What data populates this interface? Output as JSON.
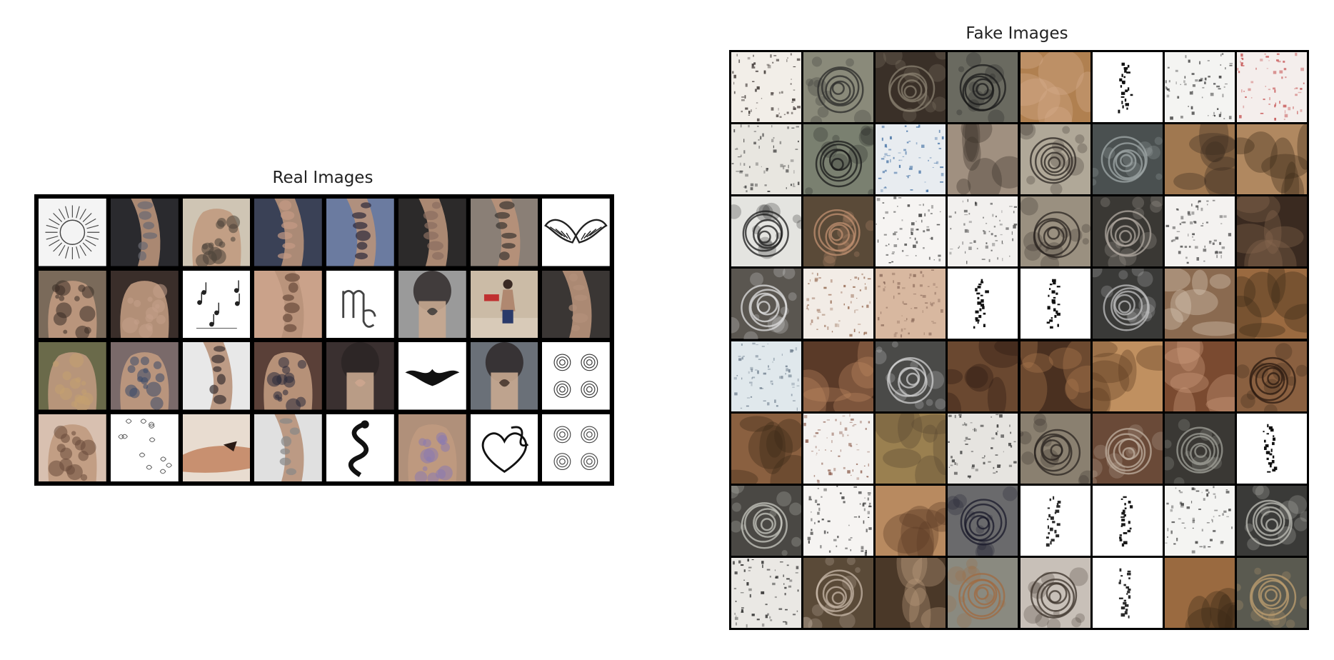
{
  "real_panel": {
    "title": "Real Images",
    "rows": 4,
    "cols": 8,
    "tiles": [
      {
        "bg": "#f4f4f4",
        "ink": "#444444",
        "motif": "sun"
      },
      {
        "bg": "#2a2a2e",
        "ink": "#6a6a72",
        "motif": "arm"
      },
      {
        "bg": "#cfc5b4",
        "ink": "#4a4238",
        "motif": "back"
      },
      {
        "bg": "#3a4156",
        "ink": "#c49a84",
        "motif": "arm"
      },
      {
        "bg": "#6b7ba0",
        "ink": "#2e2a3a",
        "motif": "arm"
      },
      {
        "bg": "#2c2a2a",
        "ink": "#8a6e60",
        "motif": "arm"
      },
      {
        "bg": "#8a7f76",
        "ink": "#3b3530",
        "motif": "arm"
      },
      {
        "bg": "#ffffff",
        "ink": "#222222",
        "motif": "wings"
      },
      {
        "bg": "#7a6a5a",
        "ink": "#3a2e26",
        "motif": "back"
      },
      {
        "bg": "#3a2e2a",
        "ink": "#c4a08a",
        "motif": "back"
      },
      {
        "bg": "#ffffff",
        "ink": "#222222",
        "motif": "notes"
      },
      {
        "bg": "#caa28a",
        "ink": "#6a4a3a",
        "motif": "arm"
      },
      {
        "bg": "#ffffff",
        "ink": "#444444",
        "motif": "glyph"
      },
      {
        "bg": "#9a9a9a",
        "ink": "#333333",
        "motif": "neck"
      },
      {
        "bg": "#cbbba6",
        "ink": "#4a3a30",
        "motif": "figure"
      },
      {
        "bg": "#3a3634",
        "ink": "#b4907a",
        "motif": "arm"
      },
      {
        "bg": "#6a6a4a",
        "ink": "#c4a070",
        "motif": "back"
      },
      {
        "bg": "#7a6a6a",
        "ink": "#3a4a6a",
        "motif": "back"
      },
      {
        "bg": "#e8e8e8",
        "ink": "#3a3030",
        "motif": "arm"
      },
      {
        "bg": "#5a4038",
        "ink": "#2a2a3a",
        "motif": "back"
      },
      {
        "bg": "#3a3030",
        "ink": "#d0a890",
        "motif": "neck"
      },
      {
        "bg": "#ffffff",
        "ink": "#111111",
        "motif": "tribal"
      },
      {
        "bg": "#6a7078",
        "ink": "#3a2a24",
        "motif": "neck"
      },
      {
        "bg": "#ffffff",
        "ink": "#333333",
        "motif": "roses"
      },
      {
        "bg": "#d8c0b0",
        "ink": "#6a4a3a",
        "motif": "back"
      },
      {
        "bg": "#ffffff",
        "ink": "#555555",
        "motif": "sketch"
      },
      {
        "bg": "#e8dcd0",
        "ink": "#a06040",
        "motif": "hands"
      },
      {
        "bg": "#e0e0e0",
        "ink": "#888888",
        "motif": "arm"
      },
      {
        "bg": "#ffffff",
        "ink": "#111111",
        "motif": "dragon"
      },
      {
        "bg": "#b0907a",
        "ink": "#8a7ab0",
        "motif": "back"
      },
      {
        "bg": "#ffffff",
        "ink": "#111111",
        "motif": "heart"
      },
      {
        "bg": "#ffffff",
        "ink": "#444444",
        "motif": "roses"
      }
    ]
  },
  "fake_panel": {
    "title": "Fake Images",
    "rows": 8,
    "cols": 8,
    "tiles": [
      {
        "bg": "#f2eee8",
        "ink": "#2a2220",
        "motif": "noise"
      },
      {
        "bg": "#8a8a7a",
        "ink": "#2a2a2a",
        "motif": "rose"
      },
      {
        "bg": "#3a3028",
        "ink": "#8a8070",
        "motif": "rose"
      },
      {
        "bg": "#6a6a60",
        "ink": "#1a1a1a",
        "motif": "rose"
      },
      {
        "bg": "#b08050",
        "ink": "#d8b090",
        "motif": "blob"
      },
      {
        "bg": "#ffffff",
        "ink": "#111111",
        "motif": "sparse"
      },
      {
        "bg": "#f4f4f2",
        "ink": "#2a2a2a",
        "motif": "noise"
      },
      {
        "bg": "#f4eeec",
        "ink": "#c04040",
        "motif": "noise"
      },
      {
        "bg": "#e8e6e0",
        "ink": "#2a2a2a",
        "motif": "noise"
      },
      {
        "bg": "#7a8070",
        "ink": "#1a1a1a",
        "motif": "rose"
      },
      {
        "bg": "#e8ecf0",
        "ink": "#3a6aa0",
        "motif": "noise"
      },
      {
        "bg": "#a09080",
        "ink": "#3a3028",
        "motif": "blob"
      },
      {
        "bg": "#b0a898",
        "ink": "#2a2420",
        "motif": "rose"
      },
      {
        "bg": "#4a5050",
        "ink": "#a0a8a8",
        "motif": "rose"
      },
      {
        "bg": "#a07850",
        "ink": "#3a2a20",
        "motif": "blob"
      },
      {
        "bg": "#b08860",
        "ink": "#3a2818",
        "motif": "blob"
      },
      {
        "bg": "#e4e4e0",
        "ink": "#1a1a1a",
        "motif": "rose"
      },
      {
        "bg": "#5a4a38",
        "ink": "#c09070",
        "motif": "rose"
      },
      {
        "bg": "#f6f4f2",
        "ink": "#2a2a2a",
        "motif": "noise"
      },
      {
        "bg": "#f2f0ee",
        "ink": "#3a3a3a",
        "motif": "noise"
      },
      {
        "bg": "#9a9080",
        "ink": "#2a2420",
        "motif": "rose"
      },
      {
        "bg": "#3a3834",
        "ink": "#b0a8a0",
        "motif": "rose"
      },
      {
        "bg": "#f4f2f0",
        "ink": "#3a3a3a",
        "motif": "noise"
      },
      {
        "bg": "#3a2a20",
        "ink": "#8a6a50",
        "motif": "blob"
      },
      {
        "bg": "#5a5650",
        "ink": "#e0e0e0",
        "motif": "rose"
      },
      {
        "bg": "#f2ece6",
        "ink": "#8a5a40",
        "motif": "noise"
      },
      {
        "bg": "#d8b8a0",
        "ink": "#8a6a5a",
        "motif": "noise"
      },
      {
        "bg": "#ffffff",
        "ink": "#111111",
        "motif": "sparse"
      },
      {
        "bg": "#ffffff",
        "ink": "#111111",
        "motif": "sparse"
      },
      {
        "bg": "#3a3a38",
        "ink": "#c0c0c0",
        "motif": "rose"
      },
      {
        "bg": "#8a6a50",
        "ink": "#e0d0c0",
        "motif": "blob"
      },
      {
        "bg": "#9a6a40",
        "ink": "#3a2818",
        "motif": "blob"
      },
      {
        "bg": "#e0e8ec",
        "ink": "#6a7a8a",
        "motif": "noise"
      },
      {
        "bg": "#5a3a28",
        "ink": "#c08a60",
        "motif": "blob"
      },
      {
        "bg": "#4a4a48",
        "ink": "#d0d0d0",
        "motif": "rose"
      },
      {
        "bg": "#6a4830",
        "ink": "#2a1a10",
        "motif": "blob"
      },
      {
        "bg": "#4a3020",
        "ink": "#b07a50",
        "motif": "blob"
      },
      {
        "bg": "#c09060",
        "ink": "#5a3a20",
        "motif": "blob"
      },
      {
        "bg": "#7a4a30",
        "ink": "#d0a080",
        "motif": "blob"
      },
      {
        "bg": "#8a6040",
        "ink": "#2a1a10",
        "motif": "rose"
      },
      {
        "bg": "#8a6040",
        "ink": "#3a2818",
        "motif": "blob"
      },
      {
        "bg": "#f4f2f0",
        "ink": "#8a5a4a",
        "motif": "noise"
      },
      {
        "bg": "#9a8050",
        "ink": "#5a4830",
        "motif": "blob"
      },
      {
        "bg": "#e6e4e0",
        "ink": "#2a2a2a",
        "motif": "noise"
      },
      {
        "bg": "#8a8070",
        "ink": "#2a2420",
        "motif": "rose"
      },
      {
        "bg": "#6a4a38",
        "ink": "#c0b0a0",
        "motif": "rose"
      },
      {
        "bg": "#3a3834",
        "ink": "#a0a098",
        "motif": "rose"
      },
      {
        "bg": "#ffffff",
        "ink": "#111111",
        "motif": "sparse"
      },
      {
        "bg": "#4a4844",
        "ink": "#c8c8c0",
        "motif": "rose"
      },
      {
        "bg": "#f6f4f2",
        "ink": "#2a2a2a",
        "motif": "noise"
      },
      {
        "bg": "#b88a60",
        "ink": "#5a3a24",
        "motif": "blob"
      },
      {
        "bg": "#6a6a6c",
        "ink": "#1a1a2a",
        "motif": "rose"
      },
      {
        "bg": "#ffffff",
        "ink": "#2a2a2a",
        "motif": "sparse"
      },
      {
        "bg": "#ffffff",
        "ink": "#1a1a1a",
        "motif": "sparse"
      },
      {
        "bg": "#f4f4f2",
        "ink": "#2a2a2a",
        "motif": "noise"
      },
      {
        "bg": "#3a3a38",
        "ink": "#c0c0b8",
        "motif": "rose"
      },
      {
        "bg": "#eae8e4",
        "ink": "#1a1a1a",
        "motif": "noise"
      },
      {
        "bg": "#5a4a38",
        "ink": "#c8b8a8",
        "motif": "rose"
      },
      {
        "bg": "#4a3828",
        "ink": "#c0a080",
        "motif": "blob"
      },
      {
        "bg": "#8a8a80",
        "ink": "#a06a40",
        "motif": "rose"
      },
      {
        "bg": "#c8c0b8",
        "ink": "#3a3028",
        "motif": "rose"
      },
      {
        "bg": "#ffffff",
        "ink": "#2a2a2a",
        "motif": "sparse"
      },
      {
        "bg": "#9a6a40",
        "ink": "#3a2818",
        "motif": "blob"
      },
      {
        "bg": "#5a5a50",
        "ink": "#c0a070",
        "motif": "rose"
      }
    ]
  }
}
